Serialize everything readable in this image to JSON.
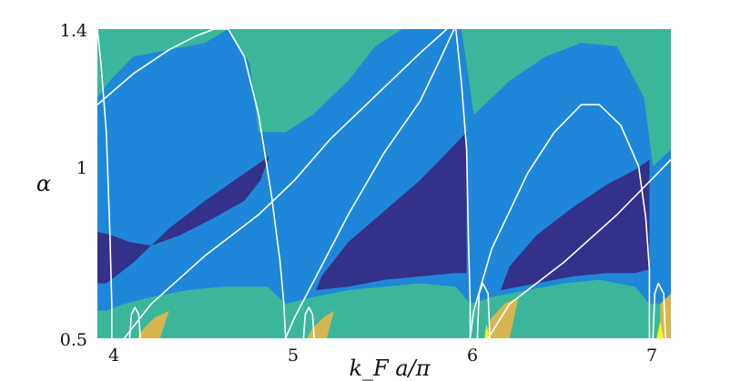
{
  "chart_data": {
    "type": "heatmap",
    "title": "",
    "xlabel": "k_F a/π",
    "ylabel": "α",
    "xlim": [
      3.9,
      7.1
    ],
    "ylim": [
      0.5,
      1.4
    ],
    "x_ticks": [
      4,
      5,
      6,
      7
    ],
    "x_tick_labels": [
      "4",
      "5",
      "6",
      "7"
    ],
    "y_ticks": [
      0.5,
      1,
      1.4
    ],
    "y_tick_labels": [
      "0.5",
      "1",
      "1.4"
    ],
    "grid": false,
    "colors": {
      "teal": "#3ab79a",
      "blue": "#1f87d9",
      "navy": "#33318a",
      "gold": "#d6b650",
      "yellow": "#f5f51e",
      "boundary": "#ffffff"
    },
    "regions": [
      {
        "name": "navy-1",
        "color": "navy",
        "polygon": [
          [
            3.9,
            0.81
          ],
          [
            3.98,
            0.8
          ],
          [
            4.08,
            0.78
          ],
          [
            4.2,
            0.77
          ],
          [
            4.36,
            0.8
          ],
          [
            4.55,
            0.85
          ],
          [
            4.72,
            0.9
          ],
          [
            4.81,
            0.96
          ],
          [
            4.86,
            1.03
          ],
          [
            4.72,
            0.98
          ],
          [
            4.5,
            0.9
          ],
          [
            4.3,
            0.82
          ],
          [
            4.1,
            0.72
          ],
          [
            3.95,
            0.66
          ],
          [
            3.9,
            0.66
          ]
        ]
      },
      {
        "name": "navy-2",
        "color": "navy",
        "polygon": [
          [
            5.12,
            0.64
          ],
          [
            5.3,
            0.65
          ],
          [
            5.5,
            0.67
          ],
          [
            5.7,
            0.68
          ],
          [
            5.9,
            0.69
          ],
          [
            5.96,
            0.69
          ],
          [
            5.96,
            1.1
          ],
          [
            5.85,
            1.04
          ],
          [
            5.7,
            0.96
          ],
          [
            5.5,
            0.87
          ],
          [
            5.3,
            0.78
          ],
          [
            5.15,
            0.68
          ]
        ]
      },
      {
        "name": "navy-3",
        "color": "navy",
        "polygon": [
          [
            6.15,
            0.64
          ],
          [
            6.35,
            0.66
          ],
          [
            6.55,
            0.68
          ],
          [
            6.75,
            0.69
          ],
          [
            6.9,
            0.69
          ],
          [
            6.98,
            0.7
          ],
          [
            6.98,
            1.02
          ],
          [
            6.9,
            0.99
          ],
          [
            6.75,
            0.95
          ],
          [
            6.55,
            0.88
          ],
          [
            6.35,
            0.8
          ],
          [
            6.2,
            0.71
          ]
        ]
      },
      {
        "name": "teal-low",
        "color": "teal",
        "polygon": [
          [
            3.9,
            0.5
          ],
          [
            7.1,
            0.5
          ],
          [
            7.1,
            0.6
          ],
          [
            6.98,
            0.6
          ],
          [
            6.9,
            0.65
          ],
          [
            6.7,
            0.67
          ],
          [
            6.5,
            0.66
          ],
          [
            6.3,
            0.64
          ],
          [
            6.1,
            0.62
          ],
          [
            5.98,
            0.6
          ],
          [
            5.9,
            0.65
          ],
          [
            5.7,
            0.66
          ],
          [
            5.5,
            0.65
          ],
          [
            5.3,
            0.64
          ],
          [
            5.1,
            0.62
          ],
          [
            4.95,
            0.6
          ],
          [
            4.85,
            0.65
          ],
          [
            4.6,
            0.65
          ],
          [
            4.4,
            0.64
          ],
          [
            4.2,
            0.62
          ],
          [
            4.05,
            0.6
          ],
          [
            3.95,
            0.58
          ],
          [
            3.9,
            0.58
          ]
        ]
      },
      {
        "name": "gold-1",
        "color": "gold",
        "polygon": [
          [
            4.12,
            0.5
          ],
          [
            4.16,
            0.53
          ],
          [
            4.22,
            0.56
          ],
          [
            4.3,
            0.58
          ],
          [
            4.25,
            0.5
          ]
        ]
      },
      {
        "name": "gold-2",
        "color": "gold",
        "polygon": [
          [
            5.07,
            0.5
          ],
          [
            5.1,
            0.53
          ],
          [
            5.16,
            0.56
          ],
          [
            5.22,
            0.58
          ],
          [
            5.18,
            0.5
          ]
        ]
      },
      {
        "name": "gold-3",
        "color": "gold",
        "polygon": [
          [
            6.06,
            0.5
          ],
          [
            6.1,
            0.56
          ],
          [
            6.17,
            0.6
          ],
          [
            6.25,
            0.62
          ],
          [
            6.2,
            0.5
          ]
        ]
      },
      {
        "name": "gold-4",
        "color": "gold",
        "polygon": [
          [
            7.04,
            0.5
          ],
          [
            7.04,
            0.6
          ],
          [
            7.1,
            0.63
          ],
          [
            7.1,
            0.5
          ]
        ]
      },
      {
        "name": "yellow-1",
        "color": "yellow",
        "polygon": [
          [
            6.06,
            0.5
          ],
          [
            6.07,
            0.54
          ],
          [
            6.09,
            0.5
          ]
        ]
      },
      {
        "name": "yellow-2",
        "color": "yellow",
        "polygon": [
          [
            7.02,
            0.5
          ],
          [
            7.04,
            0.55
          ],
          [
            7.06,
            0.5
          ]
        ]
      },
      {
        "name": "teal-top-1",
        "color": "teal",
        "polygon": [
          [
            3.9,
            1.4
          ],
          [
            4.63,
            1.4
          ],
          [
            4.5,
            1.36
          ],
          [
            4.3,
            1.34
          ],
          [
            4.1,
            1.32
          ],
          [
            3.97,
            1.25
          ],
          [
            3.9,
            1.2
          ]
        ]
      },
      {
        "name": "teal-top-2",
        "color": "teal",
        "polygon": [
          [
            4.63,
            1.4
          ],
          [
            5.6,
            1.4
          ],
          [
            5.45,
            1.35
          ],
          [
            5.3,
            1.25
          ],
          [
            5.1,
            1.15
          ],
          [
            4.95,
            1.1
          ],
          [
            4.8,
            1.1
          ],
          [
            4.75,
            1.3
          ]
        ]
      },
      {
        "name": "teal-top-3",
        "color": "teal",
        "polygon": [
          [
            5.93,
            1.4
          ],
          [
            7.1,
            1.4
          ],
          [
            7.1,
            1.05
          ],
          [
            7.0,
            1.0
          ],
          [
            6.95,
            1.2
          ],
          [
            6.8,
            1.35
          ],
          [
            6.6,
            1.36
          ],
          [
            6.4,
            1.32
          ],
          [
            6.2,
            1.25
          ],
          [
            6.0,
            1.15
          ],
          [
            5.96,
            1.3
          ]
        ]
      }
    ],
    "boundary_curves": [
      {
        "name": "dome-1",
        "points": [
          [
            3.9,
            1.18
          ],
          [
            4.1,
            1.27
          ],
          [
            4.3,
            1.34
          ],
          [
            4.45,
            1.38
          ],
          [
            4.55,
            1.4
          ],
          [
            4.63,
            1.4
          ],
          [
            4.72,
            1.32
          ],
          [
            4.8,
            1.15
          ],
          [
            4.87,
            0.92
          ],
          [
            4.92,
            0.72
          ],
          [
            4.94,
            0.6
          ],
          [
            4.95,
            0.5
          ]
        ]
      },
      {
        "name": "dome-2",
        "points": [
          [
            4.95,
            0.5
          ],
          [
            5.0,
            0.56
          ],
          [
            5.1,
            0.66
          ],
          [
            5.3,
            0.86
          ],
          [
            5.5,
            1.04
          ],
          [
            5.7,
            1.19
          ],
          [
            5.82,
            1.32
          ],
          [
            5.89,
            1.4
          ]
        ]
      },
      {
        "name": "dome-3",
        "points": [
          [
            5.9,
            1.4
          ],
          [
            5.93,
            1.25
          ],
          [
            5.96,
            1.05
          ],
          [
            5.97,
            0.8
          ],
          [
            5.98,
            0.6
          ],
          [
            5.98,
            0.5
          ]
        ]
      },
      {
        "name": "dome-4",
        "points": [
          [
            5.98,
            0.5
          ],
          [
            6.0,
            0.58
          ],
          [
            6.1,
            0.76
          ],
          [
            6.3,
            0.98
          ],
          [
            6.45,
            1.1
          ],
          [
            6.6,
            1.18
          ],
          [
            6.7,
            1.18
          ],
          [
            6.82,
            1.12
          ],
          [
            6.92,
            1.0
          ],
          [
            6.96,
            0.85
          ],
          [
            6.98,
            0.7
          ],
          [
            6.98,
            0.5
          ]
        ]
      },
      {
        "name": "diag-1",
        "points": [
          [
            4.05,
            0.5
          ],
          [
            4.2,
            0.6
          ],
          [
            4.5,
            0.74
          ],
          [
            4.8,
            0.86
          ],
          [
            5.0,
            0.96
          ],
          [
            5.2,
            1.08
          ],
          [
            5.5,
            1.23
          ],
          [
            5.7,
            1.33
          ],
          [
            5.85,
            1.4
          ]
        ]
      },
      {
        "name": "diag-2",
        "points": [
          [
            6.08,
            0.5
          ],
          [
            6.2,
            0.6
          ],
          [
            6.5,
            0.72
          ],
          [
            6.8,
            0.86
          ],
          [
            7.1,
            1.02
          ]
        ]
      },
      {
        "name": "loop-1",
        "points": [
          [
            4.08,
            0.5
          ],
          [
            4.09,
            0.57
          ],
          [
            4.11,
            0.59
          ],
          [
            4.13,
            0.57
          ],
          [
            4.14,
            0.5
          ]
        ]
      },
      {
        "name": "loop-2",
        "points": [
          [
            5.05,
            0.5
          ],
          [
            5.06,
            0.57
          ],
          [
            5.08,
            0.59
          ],
          [
            5.1,
            0.57
          ],
          [
            5.11,
            0.5
          ]
        ]
      },
      {
        "name": "loop-3",
        "points": [
          [
            6.02,
            0.5
          ],
          [
            6.03,
            0.63
          ],
          [
            6.05,
            0.66
          ],
          [
            6.08,
            0.63
          ],
          [
            6.09,
            0.5
          ]
        ]
      },
      {
        "name": "loop-4",
        "points": [
          [
            7.0,
            0.5
          ],
          [
            7.01,
            0.63
          ],
          [
            7.03,
            0.66
          ],
          [
            7.06,
            0.63
          ],
          [
            7.07,
            0.5
          ]
        ]
      },
      {
        "name": "edge-left",
        "points": [
          [
            3.9,
            1.4
          ],
          [
            3.92,
            1.3
          ],
          [
            3.95,
            1.1
          ],
          [
            3.97,
            0.8
          ],
          [
            3.98,
            0.6
          ],
          [
            3.98,
            0.5
          ]
        ]
      }
    ]
  }
}
